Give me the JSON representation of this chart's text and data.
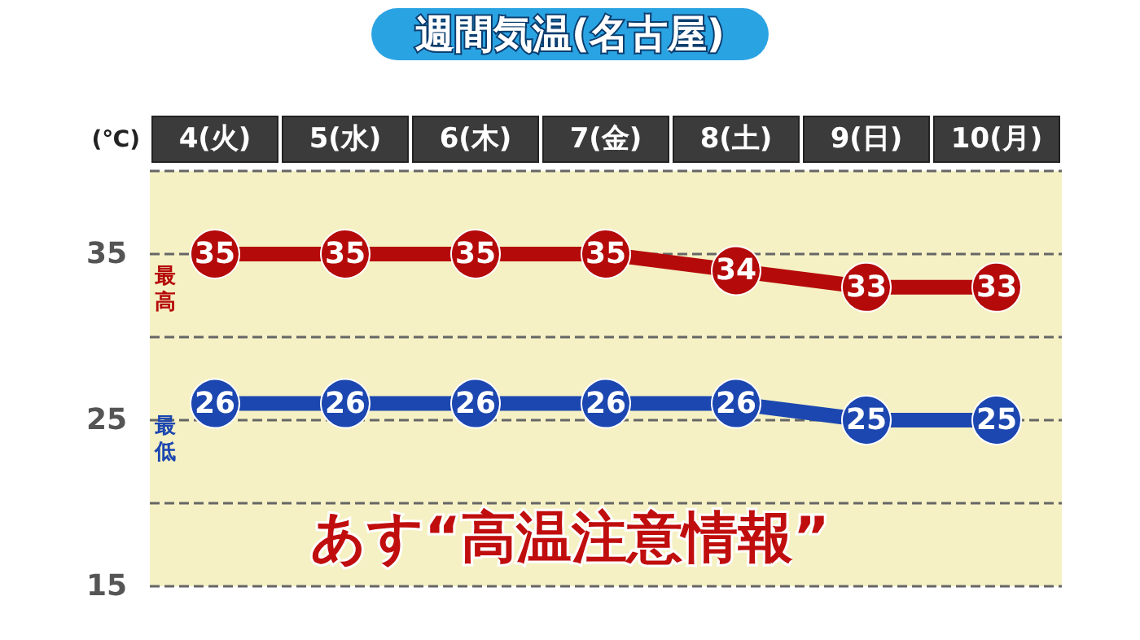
{
  "chart_data": {
    "type": "line",
    "title": "週間気温(名古屋)",
    "ylabel": "(℃)",
    "categories": [
      "4(火)",
      "5(水)",
      "6(木)",
      "7(金)",
      "8(土)",
      "9(日)",
      "10(月)"
    ],
    "series": [
      {
        "name": "最高",
        "color": "#b50a0a",
        "values": [
          35,
          35,
          35,
          35,
          34,
          33,
          33
        ]
      },
      {
        "name": "最低",
        "color": "#1c47b0",
        "values": [
          26,
          26,
          26,
          26,
          26,
          25,
          25
        ]
      }
    ],
    "ylim": [
      15,
      40
    ],
    "yticks": [
      15,
      {
        "value": 20,
        "label": null
      },
      25,
      {
        "value": 30,
        "label": null
      },
      35,
      {
        "value": 40,
        "label": null
      }
    ],
    "grid": "y",
    "data_labels": true,
    "marker": "circle",
    "line_style": "solid",
    "annotations": [
      "あす“高温注意情報”"
    ]
  }
}
